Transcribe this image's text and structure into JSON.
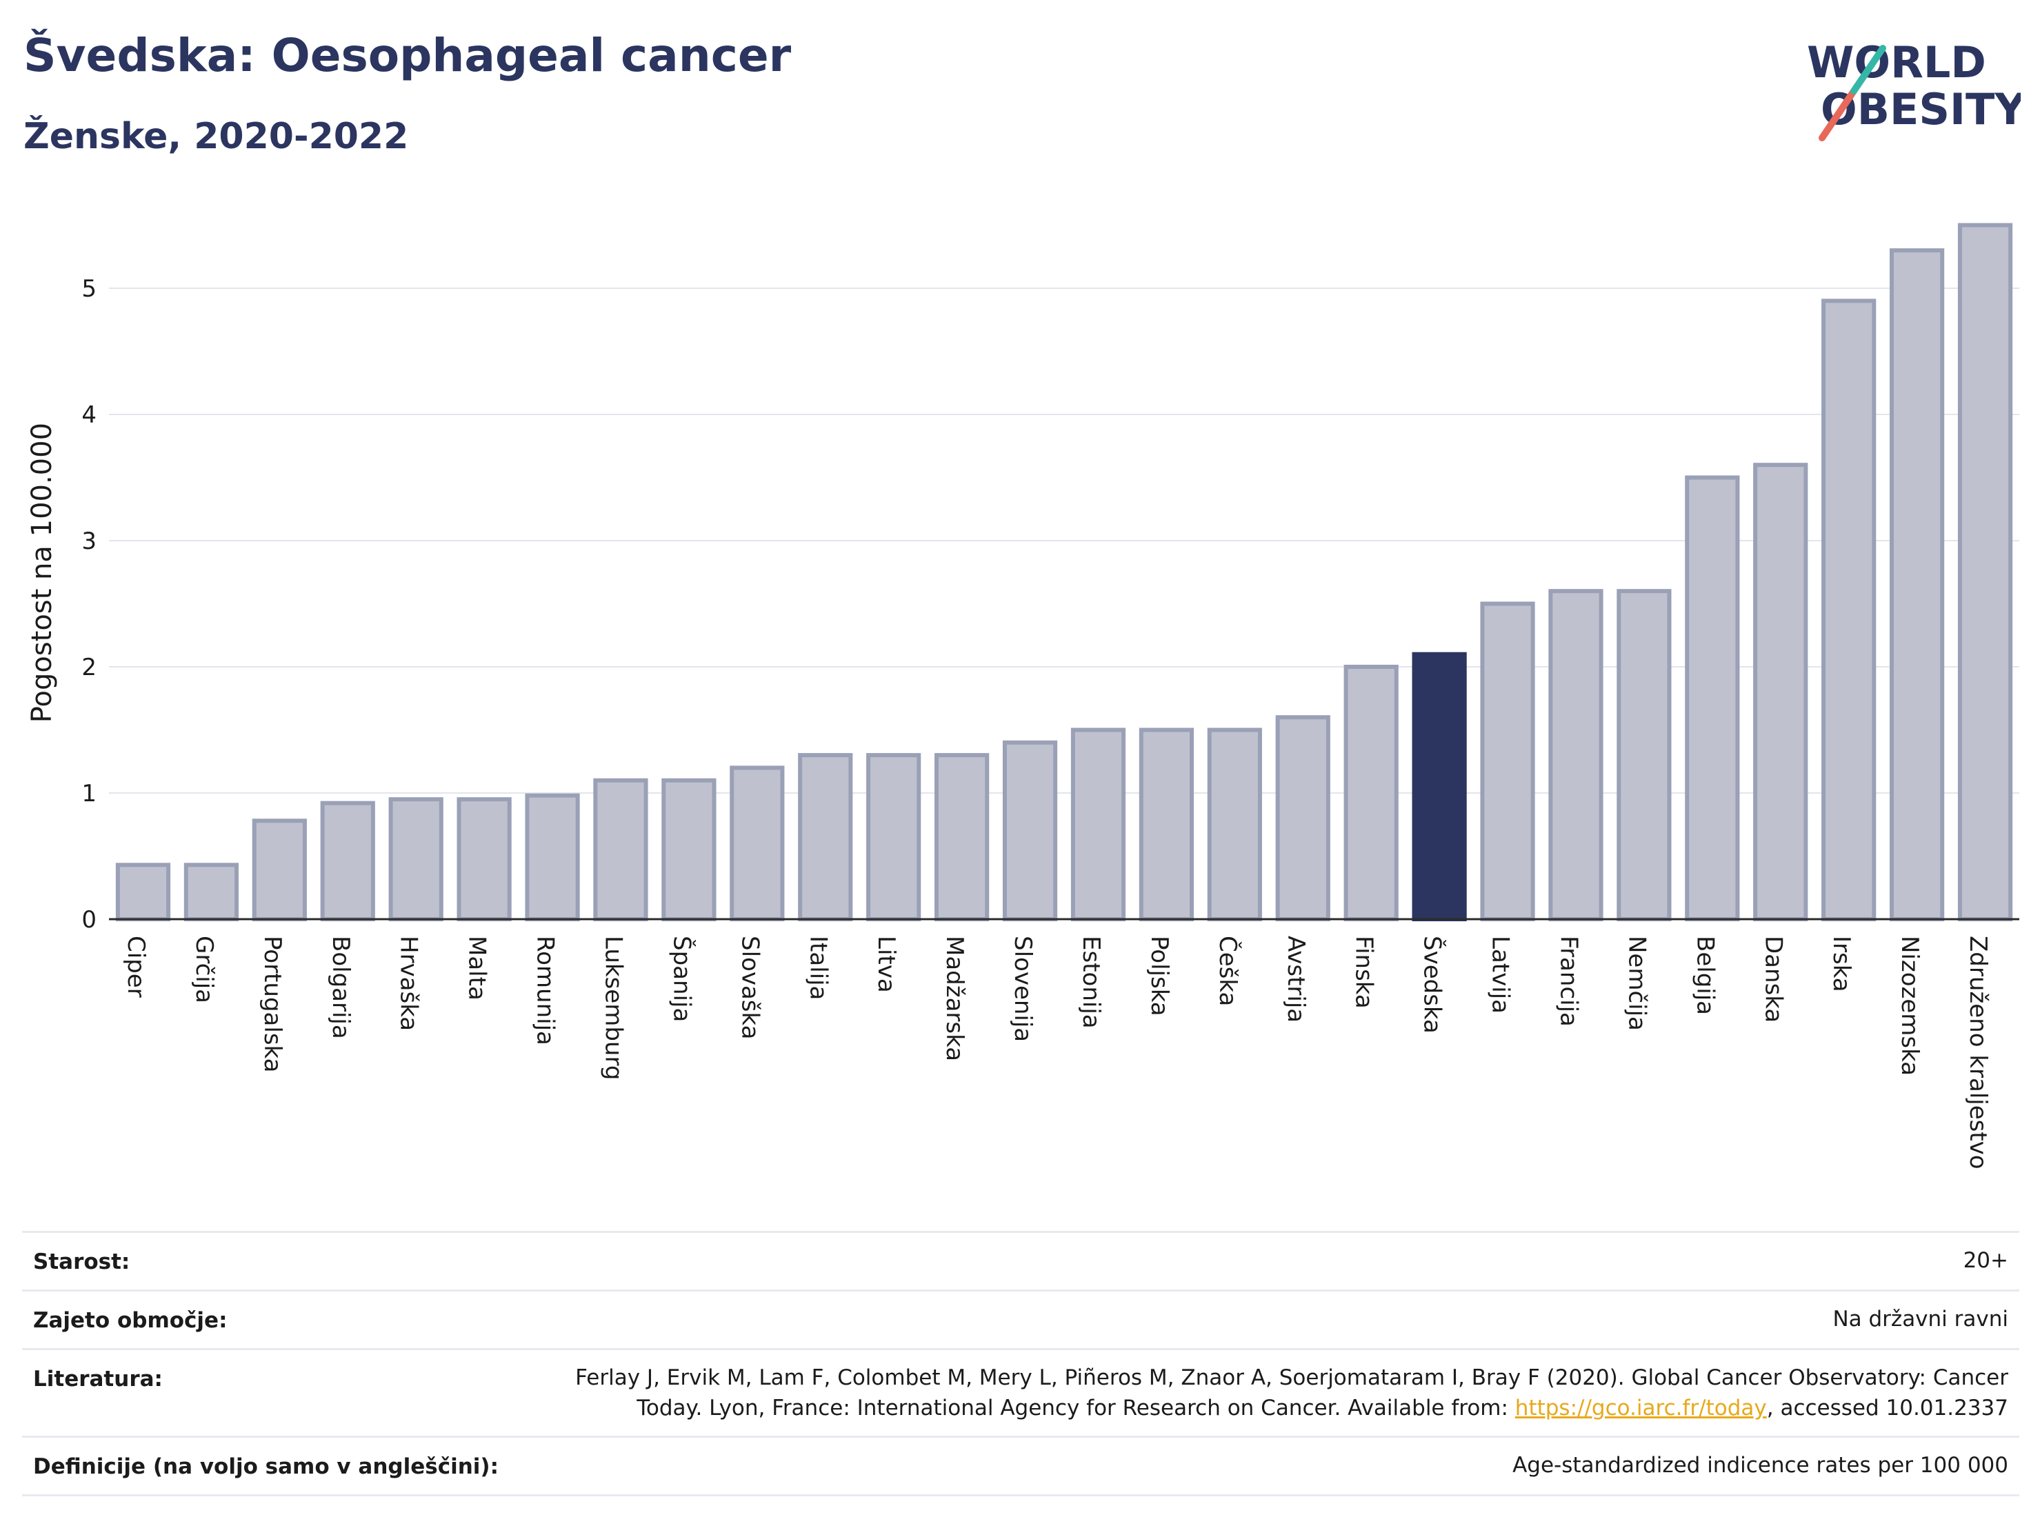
{
  "header": {
    "title": "Švedska: Oesophageal cancer",
    "subtitle": "Ženske, 2020-2022"
  },
  "logo": {
    "line1": "WORLD",
    "line2": "OBESITY"
  },
  "colors": {
    "highlight": "#2b3560",
    "bar": "#bfc2ce",
    "bar_border": "#9aa0b6",
    "text": "#2b3560",
    "link": "#e7a91b"
  },
  "chart_data": {
    "type": "bar",
    "ylabel": "Pogostost na 100.000",
    "ylim": [
      0,
      5.6
    ],
    "yticks": [
      0,
      1,
      2,
      3,
      4,
      5
    ],
    "grid": true,
    "highlight": "Švedska",
    "categories": [
      "Ciper",
      "Grčija",
      "Portugalska",
      "Bolgarija",
      "Hrvaška",
      "Malta",
      "Romunija",
      "Luksemburg",
      "Španija",
      "Slovaška",
      "Italija",
      "Litva",
      "Madžarska",
      "Slovenija",
      "Estonija",
      "Poljska",
      "Češka",
      "Avstrija",
      "Finska",
      "Švedska",
      "Latvija",
      "Francija",
      "Nemčija",
      "Belgija",
      "Danska",
      "Irska",
      "Nizozemska",
      "Združeno kraljestvo"
    ],
    "values": [
      0.43,
      0.43,
      0.78,
      0.92,
      0.95,
      0.95,
      0.98,
      1.1,
      1.1,
      1.2,
      1.3,
      1.3,
      1.3,
      1.4,
      1.5,
      1.5,
      1.5,
      1.6,
      2.0,
      2.1,
      2.5,
      2.6,
      2.6,
      3.5,
      3.6,
      4.9,
      5.3,
      5.5
    ]
  },
  "info": {
    "age_label": "Starost:",
    "age_value": "20+",
    "area_label": "Zajeto območje:",
    "area_value": "Na državni ravni",
    "lit_label": "Literatura:",
    "lit_line1": "Ferlay J, Ervik M, Lam F, Colombet M, Mery L, Piñeros M, Znaor A, Soerjomataram I, Bray F (2020). Global Cancer Observatory: Cancer",
    "lit_line2_pre": "Today. Lyon, France: International Agency for Research on Cancer. Available from: ",
    "lit_link": "https://gco.iarc.fr/today",
    "lit_line2_post": ", accessed 10.01.2337",
    "def_label": "Definicije (na voljo samo v angleščini):",
    "def_value": "Age-standardized indicence rates per 100 000"
  }
}
